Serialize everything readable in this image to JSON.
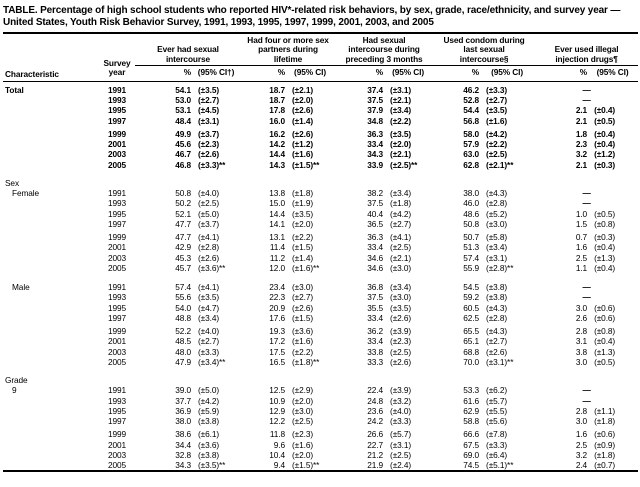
{
  "title": "TABLE. Percentage of high school students who reported HIV*-related risk behaviors, by sex, grade, race/ethnicity, and survey year — United States, Youth Risk Behavior Survey, 1991, 1993, 1995, 1997, 1999, 2001, 2003, and 2005",
  "colors": {
    "text": "#000000",
    "background": "#ffffff"
  },
  "table": {
    "characteristic_header": "Characteristic",
    "survey_year_header": "Survey year",
    "no_data_symbol": "—",
    "groups": [
      {
        "title": "Ever had sexual intercourse",
        "pct_label": "%",
        "ci_label": "(95% CI†)"
      },
      {
        "title": "Had four or more sex partners during lifetime",
        "pct_label": "%",
        "ci_label": "(95% CI)"
      },
      {
        "title": "Had sexual intercourse during preceding 3 months",
        "pct_label": "%",
        "ci_label": "(95% CI)"
      },
      {
        "title": "Used condom during last sexual intercourse§",
        "pct_label": "%",
        "ci_label": "(95% CI)"
      },
      {
        "title": "Ever used illegal injection drugs¶",
        "pct_label": "%",
        "ci_label": "(95% CI)"
      }
    ],
    "sections": [
      {
        "label": "Total",
        "bold": true,
        "indent": false,
        "rows": [
          {
            "year": "1991",
            "cells": [
              [
                "54.1",
                "(±3.5)"
              ],
              [
                "18.7",
                "(±2.1)"
              ],
              [
                "37.4",
                "(±3.1)"
              ],
              [
                "46.2",
                "(±3.3)"
              ],
              [
                "—",
                ""
              ]
            ]
          },
          {
            "year": "1993",
            "cells": [
              [
                "53.0",
                "(±2.7)"
              ],
              [
                "18.7",
                "(±2.0)"
              ],
              [
                "37.5",
                "(±2.1)"
              ],
              [
                "52.8",
                "(±2.7)"
              ],
              [
                "—",
                ""
              ]
            ]
          },
          {
            "year": "1995",
            "cells": [
              [
                "53.1",
                "(±4.5)"
              ],
              [
                "17.8",
                "(±2.6)"
              ],
              [
                "37.9",
                "(±3.4)"
              ],
              [
                "54.4",
                "(±3.5)"
              ],
              [
                "2.1",
                "(±0.4)"
              ]
            ]
          },
          {
            "year": "1997",
            "cells": [
              [
                "48.4",
                "(±3.1)"
              ],
              [
                "16.0",
                "(±1.4)"
              ],
              [
                "34.8",
                "(±2.2)"
              ],
              [
                "56.8",
                "(±1.6)"
              ],
              [
                "2.1",
                "(±0.5)"
              ]
            ]
          },
          {
            "year": "1999",
            "cells": [
              [
                "49.9",
                "(±3.7)"
              ],
              [
                "16.2",
                "(±2.6)"
              ],
              [
                "36.3",
                "(±3.5)"
              ],
              [
                "58.0",
                "(±4.2)"
              ],
              [
                "1.8",
                "(±0.4)"
              ]
            ]
          },
          {
            "year": "2001",
            "cells": [
              [
                "45.6",
                "(±2.3)"
              ],
              [
                "14.2",
                "(±1.2)"
              ],
              [
                "33.4",
                "(±2.0)"
              ],
              [
                "57.9",
                "(±2.2)"
              ],
              [
                "2.3",
                "(±0.4)"
              ]
            ]
          },
          {
            "year": "2003",
            "cells": [
              [
                "46.7",
                "(±2.6)"
              ],
              [
                "14.4",
                "(±1.6)"
              ],
              [
                "34.3",
                "(±2.1)"
              ],
              [
                "63.0",
                "(±2.5)"
              ],
              [
                "3.2",
                "(±1.2)"
              ]
            ]
          },
          {
            "year": "2005",
            "cells": [
              [
                "46.8",
                "(±3.3)**"
              ],
              [
                "14.3",
                "(±1.5)**"
              ],
              [
                "33.9",
                "(±2.5)**"
              ],
              [
                "62.8",
                "(±2.1)**"
              ],
              [
                "2.1",
                "(±0.3)"
              ]
            ]
          }
        ]
      },
      {
        "label": "Sex",
        "type": "group-label",
        "indent": false
      },
      {
        "label": "Female",
        "bold": false,
        "indent": true,
        "rows": [
          {
            "year": "1991",
            "cells": [
              [
                "50.8",
                "(±4.0)"
              ],
              [
                "13.8",
                "(±1.8)"
              ],
              [
                "38.2",
                "(±3.4)"
              ],
              [
                "38.0",
                "(±4.3)"
              ],
              [
                "—",
                ""
              ]
            ]
          },
          {
            "year": "1993",
            "cells": [
              [
                "50.2",
                "(±2.5)"
              ],
              [
                "15.0",
                "(±1.9)"
              ],
              [
                "37.5",
                "(±1.8)"
              ],
              [
                "46.0",
                "(±2.8)"
              ],
              [
                "—",
                ""
              ]
            ]
          },
          {
            "year": "1995",
            "cells": [
              [
                "52.1",
                "(±5.0)"
              ],
              [
                "14.4",
                "(±3.5)"
              ],
              [
                "40.4",
                "(±4.2)"
              ],
              [
                "48.6",
                "(±5.2)"
              ],
              [
                "1.0",
                "(±0.5)"
              ]
            ]
          },
          {
            "year": "1997",
            "cells": [
              [
                "47.7",
                "(±3.7)"
              ],
              [
                "14.1",
                "(±2.0)"
              ],
              [
                "36.5",
                "(±2.7)"
              ],
              [
                "50.8",
                "(±3.0)"
              ],
              [
                "1.5",
                "(±0.8)"
              ]
            ]
          },
          {
            "year": "1999",
            "cells": [
              [
                "47.7",
                "(±4.1)"
              ],
              [
                "13.1",
                "(±2.2)"
              ],
              [
                "36.3",
                "(±4.1)"
              ],
              [
                "50.7",
                "(±5.8)"
              ],
              [
                "0.7",
                "(±0.3)"
              ]
            ]
          },
          {
            "year": "2001",
            "cells": [
              [
                "42.9",
                "(±2.8)"
              ],
              [
                "11.4",
                "(±1.5)"
              ],
              [
                "33.4",
                "(±2.5)"
              ],
              [
                "51.3",
                "(±3.4)"
              ],
              [
                "1.6",
                "(±0.4)"
              ]
            ]
          },
          {
            "year": "2003",
            "cells": [
              [
                "45.3",
                "(±2.6)"
              ],
              [
                "11.2",
                "(±1.4)"
              ],
              [
                "34.6",
                "(±2.1)"
              ],
              [
                "57.4",
                "(±3.1)"
              ],
              [
                "2.5",
                "(±1.3)"
              ]
            ]
          },
          {
            "year": "2005",
            "cells": [
              [
                "45.7",
                "(±3.6)**"
              ],
              [
                "12.0",
                "(±1.6)**"
              ],
              [
                "34.6",
                "(±3.0)"
              ],
              [
                "55.9",
                "(±2.8)**"
              ],
              [
                "1.1",
                "(±0.4)"
              ]
            ]
          }
        ]
      },
      {
        "label": "Male",
        "bold": false,
        "indent": true,
        "gap_before": true,
        "rows": [
          {
            "year": "1991",
            "cells": [
              [
                "57.4",
                "(±4.1)"
              ],
              [
                "23.4",
                "(±3.0)"
              ],
              [
                "36.8",
                "(±3.4)"
              ],
              [
                "54.5",
                "(±3.8)"
              ],
              [
                "—",
                ""
              ]
            ]
          },
          {
            "year": "1993",
            "cells": [
              [
                "55.6",
                "(±3.5)"
              ],
              [
                "22.3",
                "(±2.7)"
              ],
              [
                "37.5",
                "(±3.0)"
              ],
              [
                "59.2",
                "(±3.8)"
              ],
              [
                "—",
                ""
              ]
            ]
          },
          {
            "year": "1995",
            "cells": [
              [
                "54.0",
                "(±4.7)"
              ],
              [
                "20.9",
                "(±2.6)"
              ],
              [
                "35.5",
                "(±3.5)"
              ],
              [
                "60.5",
                "(±4.3)"
              ],
              [
                "3.0",
                "(±0.6)"
              ]
            ]
          },
          {
            "year": "1997",
            "cells": [
              [
                "48.8",
                "(±3.4)"
              ],
              [
                "17.6",
                "(±1.5)"
              ],
              [
                "33.4",
                "(±2.6)"
              ],
              [
                "62.5",
                "(±2.8)"
              ],
              [
                "2.6",
                "(±0.6)"
              ]
            ]
          },
          {
            "year": "1999",
            "cells": [
              [
                "52.2",
                "(±4.0)"
              ],
              [
                "19.3",
                "(±3.6)"
              ],
              [
                "36.2",
                "(±3.9)"
              ],
              [
                "65.5",
                "(±4.3)"
              ],
              [
                "2.8",
                "(±0.8)"
              ]
            ]
          },
          {
            "year": "2001",
            "cells": [
              [
                "48.5",
                "(±2.7)"
              ],
              [
                "17.2",
                "(±1.6)"
              ],
              [
                "33.4",
                "(±2.3)"
              ],
              [
                "65.1",
                "(±2.7)"
              ],
              [
                "3.1",
                "(±0.4)"
              ]
            ]
          },
          {
            "year": "2003",
            "cells": [
              [
                "48.0",
                "(±3.3)"
              ],
              [
                "17.5",
                "(±2.2)"
              ],
              [
                "33.8",
                "(±2.5)"
              ],
              [
                "68.8",
                "(±2.6)"
              ],
              [
                "3.8",
                "(±1.3)"
              ]
            ]
          },
          {
            "year": "2005",
            "cells": [
              [
                "47.9",
                "(±3.4)**"
              ],
              [
                "16.5",
                "(±1.8)**"
              ],
              [
                "33.3",
                "(±2.6)"
              ],
              [
                "70.0",
                "(±3.1)**"
              ],
              [
                "3.0",
                "(±0.5)"
              ]
            ]
          }
        ]
      },
      {
        "label": "Grade",
        "type": "group-label",
        "indent": false
      },
      {
        "label": "9",
        "bold": false,
        "indent": true,
        "rows": [
          {
            "year": "1991",
            "cells": [
              [
                "39.0",
                "(±5.0)"
              ],
              [
                "12.5",
                "(±2.9)"
              ],
              [
                "22.4",
                "(±3.9)"
              ],
              [
                "53.3",
                "(±6.2)"
              ],
              [
                "—",
                ""
              ]
            ]
          },
          {
            "year": "1993",
            "cells": [
              [
                "37.7",
                "(±4.2)"
              ],
              [
                "10.9",
                "(±2.0)"
              ],
              [
                "24.8",
                "(±3.2)"
              ],
              [
                "61.6",
                "(±5.7)"
              ],
              [
                "—",
                ""
              ]
            ]
          },
          {
            "year": "1995",
            "cells": [
              [
                "36.9",
                "(±5.9)"
              ],
              [
                "12.9",
                "(±3.0)"
              ],
              [
                "23.6",
                "(±4.0)"
              ],
              [
                "62.9",
                "(±5.5)"
              ],
              [
                "2.8",
                "(±1.1)"
              ]
            ]
          },
          {
            "year": "1997",
            "cells": [
              [
                "38.0",
                "(±3.8)"
              ],
              [
                "12.2",
                "(±2.5)"
              ],
              [
                "24.2",
                "(±3.3)"
              ],
              [
                "58.8",
                "(±5.6)"
              ],
              [
                "3.0",
                "(±1.8)"
              ]
            ]
          },
          {
            "year": "1999",
            "cells": [
              [
                "38.6",
                "(±6.1)"
              ],
              [
                "11.8",
                "(±2.3)"
              ],
              [
                "26.6",
                "(±5.7)"
              ],
              [
                "66.6",
                "(±7.8)"
              ],
              [
                "1.6",
                "(±0.6)"
              ]
            ]
          },
          {
            "year": "2001",
            "cells": [
              [
                "34.4",
                "(±3.6)"
              ],
              [
                "9.6",
                "(±1.6)"
              ],
              [
                "22.7",
                "(±3.1)"
              ],
              [
                "67.5",
                "(±3.3)"
              ],
              [
                "2.5",
                "(±0.9)"
              ]
            ]
          },
          {
            "year": "2003",
            "cells": [
              [
                "32.8",
                "(±3.8)"
              ],
              [
                "10.4",
                "(±2.0)"
              ],
              [
                "21.2",
                "(±2.5)"
              ],
              [
                "69.0",
                "(±6.4)"
              ],
              [
                "3.2",
                "(±1.8)"
              ]
            ]
          },
          {
            "year": "2005",
            "cells": [
              [
                "34.3",
                "(±3.5)**"
              ],
              [
                "9.4",
                "(±1.5)**"
              ],
              [
                "21.9",
                "(±2.4)"
              ],
              [
                "74.5",
                "(±5.1)**"
              ],
              [
                "2.4",
                "(±0.7)"
              ]
            ]
          }
        ]
      }
    ]
  }
}
